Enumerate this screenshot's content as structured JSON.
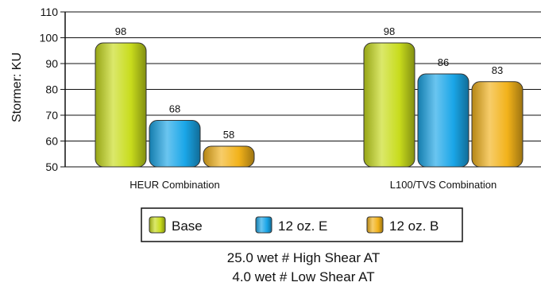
{
  "chart_data": {
    "type": "bar",
    "ylabel": "Stormer: KU",
    "ylim": [
      50,
      110
    ],
    "yticks": [
      50,
      60,
      70,
      80,
      90,
      100,
      110
    ],
    "categories": [
      "HEUR Combination",
      "L100/TVS Combination"
    ],
    "series": [
      {
        "name": "Base",
        "values": [
          98,
          98
        ],
        "color": "#c8dc1c"
      },
      {
        "name": "12 oz. E",
        "values": [
          68,
          86
        ],
        "color": "#1aa6e8"
      },
      {
        "name": "12 oz. B",
        "values": [
          58,
          83
        ],
        "color": "#f2b21a"
      }
    ],
    "value_labels": [
      [
        "98",
        "98"
      ],
      [
        "68",
        "86"
      ],
      [
        "58",
        "83"
      ]
    ],
    "grid": true,
    "legend_position": "bottom",
    "subtitle_lines": [
      "25.0 wet # High Shear AT",
      "4.0 wet # Low Shear AT"
    ]
  }
}
